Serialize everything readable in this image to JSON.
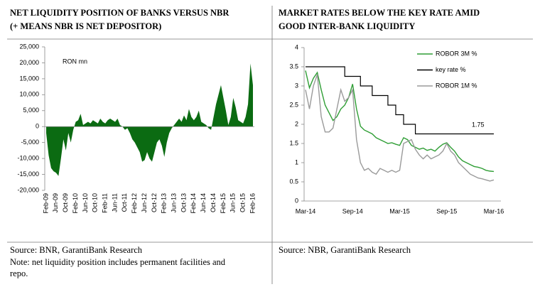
{
  "chart_data": [
    {
      "type": "area",
      "title": [
        "NET LIQUIDITY POSITION OF BANKS VERSUS NBR",
        "(+ MEANS NBR IS NET DEPOSITOR)"
      ],
      "annotation": "RON mn",
      "color": "#0b6b12",
      "categories": [
        "Feb-09",
        null,
        null,
        null,
        "Jun-09",
        null,
        null,
        null,
        "Oct-09",
        null,
        null,
        null,
        "Feb-10",
        null,
        null,
        null,
        "Jun-10",
        null,
        null,
        null,
        "Oct-10",
        null,
        null,
        null,
        "Feb-11",
        null,
        null,
        null,
        "Jun-11",
        null,
        null,
        null,
        "Oct-11",
        null,
        null,
        null,
        "Feb-12",
        null,
        null,
        null,
        "Jun-12",
        null,
        null,
        null,
        "Oct-12",
        null,
        null,
        null,
        "Feb-13",
        null,
        null,
        null,
        "Jun-13",
        null,
        null,
        null,
        "Oct-13",
        null,
        null,
        null,
        "Feb-14",
        null,
        null,
        null,
        "Jun-14",
        null,
        null,
        null,
        "Oct-14",
        null,
        null,
        null,
        "Feb-15",
        null,
        null,
        null,
        "Jun-15",
        null,
        null,
        null,
        "Oct-15",
        null,
        null,
        null,
        "Feb-16"
      ],
      "values": [
        -2000,
        -9000,
        -13000,
        -14000,
        -14500,
        -15500,
        -10000,
        -4000,
        -7500,
        -2000,
        -5000,
        -1000,
        1500,
        2000,
        4000,
        500,
        1000,
        1500,
        1000,
        2000,
        1500,
        1000,
        2500,
        1500,
        1000,
        2000,
        2500,
        2000,
        1500,
        2500,
        500,
        0,
        -1000,
        -500,
        -2000,
        -4000,
        -5000,
        -6500,
        -8000,
        -11000,
        -10500,
        -8000,
        -10000,
        -11000,
        -8000,
        -5000,
        -4000,
        -6000,
        -9500,
        -5000,
        -2000,
        -500,
        500,
        1500,
        2500,
        1500,
        3500,
        2000,
        5500,
        3000,
        2000,
        3000,
        5000,
        1500,
        1000,
        500,
        -500,
        -1000,
        3000,
        7000,
        10000,
        13000,
        9000,
        5000,
        500,
        3000,
        9000,
        6000,
        2000,
        1500,
        1000,
        3000,
        7000,
        19800,
        13000
      ],
      "ylim": [
        -20000,
        25000
      ],
      "yticks": [
        {
          "value": -20000,
          "label": "-20,000"
        },
        {
          "value": -15000,
          "label": "-15,000"
        },
        {
          "value": -10000,
          "label": "-10,000"
        },
        {
          "value": -5000,
          "label": "-5,000"
        },
        0,
        {
          "value": 5000,
          "label": "5,000"
        },
        {
          "value": 10000,
          "label": "10,000"
        },
        {
          "value": 15000,
          "label": "15,000"
        },
        {
          "value": 20000,
          "label": "20,000"
        },
        {
          "value": 25000,
          "label": "25,000"
        }
      ],
      "source": "Source: BNR, GarantiBank Research",
      "note": [
        "Note: net liquidity position includes permanent facilities and",
        "repo."
      ]
    },
    {
      "type": "line",
      "title": [
        "MARKET RATES BELOW THE KEY RATE AMID",
        "GOOD INTER-BANK LIQUIDITY"
      ],
      "annotation": "1.75",
      "categories": [
        "Mar-14",
        null,
        null,
        null,
        null,
        null,
        null,
        null,
        null,
        null,
        null,
        null,
        "Sep-14",
        null,
        null,
        null,
        null,
        null,
        null,
        null,
        null,
        null,
        null,
        null,
        "Mar-15",
        null,
        null,
        null,
        null,
        null,
        null,
        null,
        null,
        null,
        null,
        null,
        "Sep-15",
        null,
        null,
        null,
        null,
        null,
        null,
        null,
        null,
        null,
        null,
        null,
        "Mar-16"
      ],
      "series": [
        {
          "name": "ROBOR 3M %",
          "color": "#2f9e35",
          "values": [
            3.4,
            2.95,
            3.2,
            3.35,
            2.9,
            2.5,
            2.3,
            2.1,
            2.2,
            2.4,
            2.5,
            2.7,
            3.05,
            2.4,
            1.95,
            1.85,
            1.8,
            1.75,
            1.65,
            1.6,
            1.55,
            1.5,
            1.52,
            1.48,
            1.45,
            1.65,
            1.6,
            1.45,
            1.4,
            1.35,
            1.38,
            1.32,
            1.35,
            1.3,
            1.4,
            1.48,
            1.52,
            1.4,
            1.3,
            1.15,
            1.05,
            1.0,
            0.95,
            0.9,
            0.88,
            0.85,
            0.8,
            0.78,
            0.77
          ]
        },
        {
          "name": "key rate %",
          "color": "#000000",
          "step": true,
          "values": [
            3.5,
            3.5,
            3.5,
            3.5,
            3.5,
            3.5,
            3.5,
            3.5,
            3.5,
            3.5,
            3.25,
            3.25,
            3.25,
            3.25,
            3.0,
            3.0,
            3.0,
            2.75,
            2.75,
            2.75,
            2.75,
            2.5,
            2.5,
            2.25,
            2.25,
            2.0,
            2.0,
            2.0,
            1.75,
            1.75,
            1.75,
            1.75,
            1.75,
            1.75,
            1.75,
            1.75,
            1.75,
            1.75,
            1.75,
            1.75,
            1.75,
            1.75,
            1.75,
            1.75,
            1.75,
            1.75,
            1.75,
            1.75,
            1.75
          ]
        },
        {
          "name": "ROBOR 1M %",
          "color": "#9a9a9a",
          "values": [
            2.9,
            2.4,
            3.0,
            3.3,
            2.2,
            1.8,
            1.8,
            1.9,
            2.4,
            2.9,
            2.6,
            2.7,
            2.9,
            1.6,
            1.0,
            0.8,
            0.85,
            0.75,
            0.7,
            0.85,
            0.8,
            0.75,
            0.8,
            0.75,
            0.8,
            1.5,
            1.55,
            1.6,
            1.35,
            1.2,
            1.1,
            1.2,
            1.1,
            1.15,
            1.2,
            1.3,
            1.5,
            1.3,
            1.2,
            1.0,
            0.9,
            0.8,
            0.7,
            0.65,
            0.6,
            0.58,
            0.55,
            0.52,
            0.55
          ]
        }
      ],
      "ylim": [
        0,
        4
      ],
      "yticks": [
        0,
        0.5,
        1,
        1.5,
        2,
        2.5,
        3,
        3.5,
        4
      ],
      "legend": "upper right",
      "source": "Source: NBR, GarantiBank Research"
    }
  ]
}
